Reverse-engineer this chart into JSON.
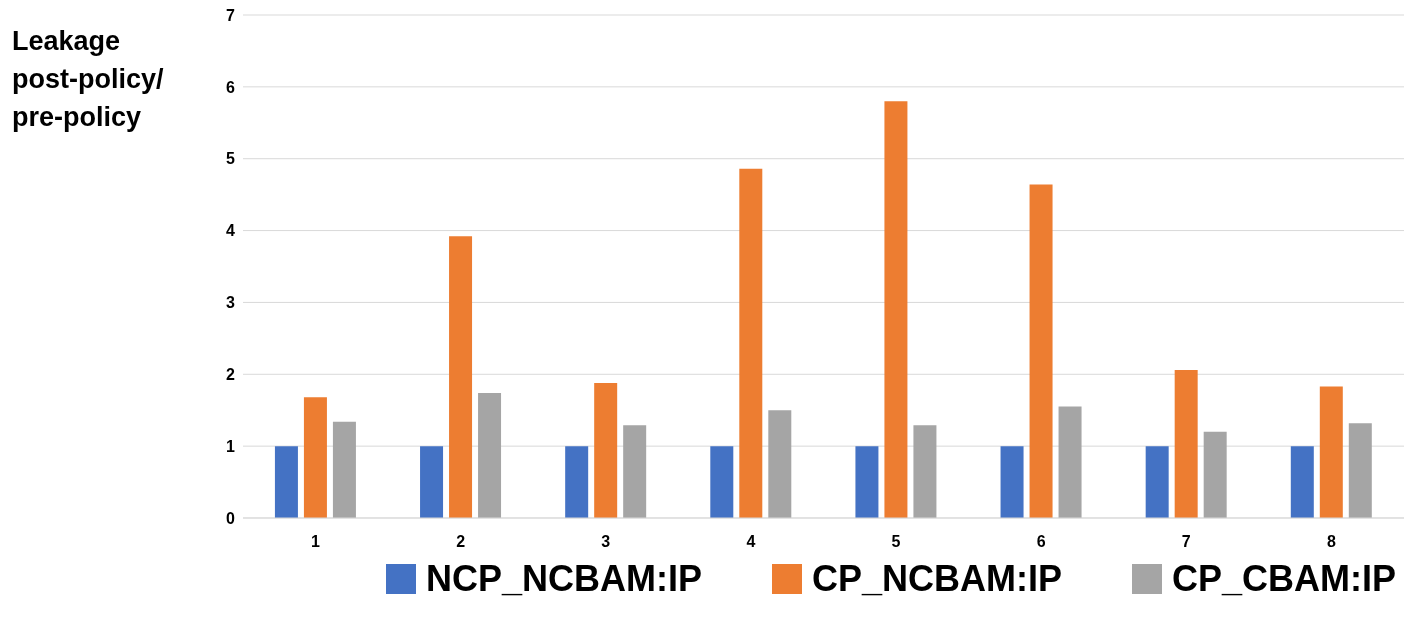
{
  "chart_data": {
    "type": "bar",
    "ylabel": "Leakage\npost-policy/\npre-policy",
    "categories": [
      "1",
      "2",
      "3",
      "4",
      "5",
      "6",
      "7",
      "8"
    ],
    "series": [
      {
        "name": "NCP_NCBAM:IP",
        "color": "#4472c4",
        "values": [
          1,
          1,
          1,
          1,
          1,
          1,
          1,
          1
        ]
      },
      {
        "name": "CP_NCBAM:IP",
        "color": "#ed7d31",
        "values": [
          1.68,
          3.92,
          1.88,
          4.86,
          5.8,
          4.64,
          2.06,
          1.83
        ]
      },
      {
        "name": "CP_CBAM:IP",
        "color": "#a5a5a5",
        "values": [
          1.34,
          1.74,
          1.29,
          1.5,
          1.29,
          1.55,
          1.2,
          1.32
        ]
      }
    ],
    "ylim": [
      0,
      7
    ],
    "yticks": [
      0,
      1,
      2,
      3,
      4,
      5,
      6,
      7
    ],
    "grid": "y",
    "legend": "bottom"
  }
}
